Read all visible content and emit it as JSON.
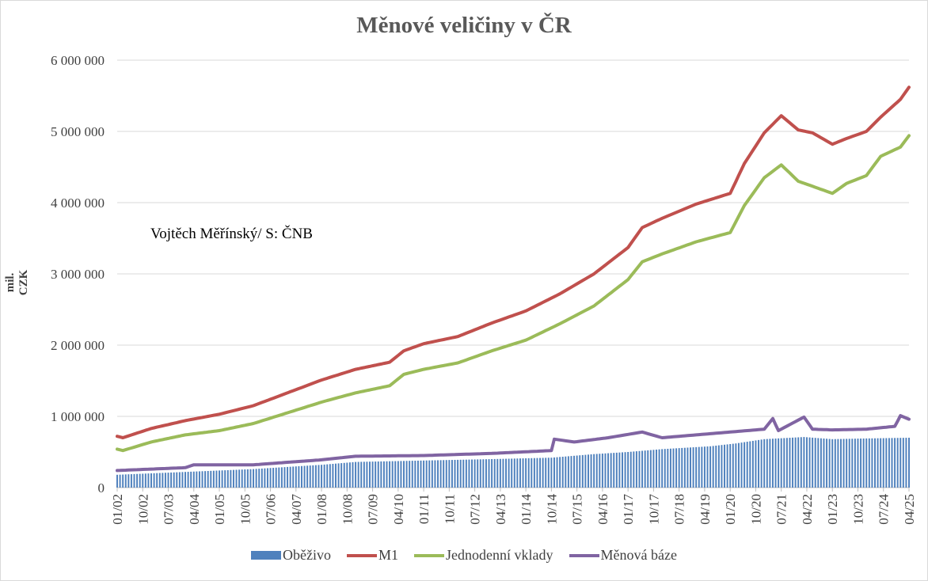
{
  "chart_data": {
    "type": "line",
    "title": "Měnové veličiny v ČR",
    "xlabel": "",
    "ylabel": "mil. CZK",
    "annotation": "Vojtěch Měřínský/ S: ČNB",
    "ylim": [
      0,
      6000000
    ],
    "ytick_labels": [
      "0",
      "1 000 000",
      "2 000 000",
      "3 000 000",
      "4 000 000",
      "5 000 000",
      "6 000 000"
    ],
    "x_tick_labels": [
      "01/02",
      "10/02",
      "07/03",
      "04/04",
      "01/05",
      "10/05",
      "07/06",
      "04/07",
      "01/08",
      "10/08",
      "07/09",
      "04/10",
      "01/11",
      "10/11",
      "07/12",
      "04/13",
      "01/14",
      "10/14",
      "07/15",
      "04/16",
      "01/17",
      "10/17",
      "07/18",
      "04/19",
      "01/20",
      "10/20",
      "07/21",
      "04/22",
      "01/23",
      "10/23",
      "07/24",
      "04/25"
    ],
    "x_range_months": [
      "2002-01",
      "2025-04"
    ],
    "grid": true,
    "legend_position": "bottom",
    "series": [
      {
        "name": "Oběživo",
        "type": "bar",
        "color": "#4f81bd",
        "points": [
          [
            "2002-01",
            180000
          ],
          [
            "2004-01",
            220000
          ],
          [
            "2006-01",
            260000
          ],
          [
            "2008-01",
            320000
          ],
          [
            "2009-01",
            360000
          ],
          [
            "2011-01",
            380000
          ],
          [
            "2013-01",
            400000
          ],
          [
            "2014-10",
            420000
          ],
          [
            "2016-01",
            470000
          ],
          [
            "2017-01",
            500000
          ],
          [
            "2018-01",
            540000
          ],
          [
            "2019-06",
            580000
          ],
          [
            "2020-03",
            620000
          ],
          [
            "2021-01",
            680000
          ],
          [
            "2022-03",
            710000
          ],
          [
            "2023-01",
            680000
          ],
          [
            "2024-01",
            690000
          ],
          [
            "2025-04",
            700000
          ]
        ]
      },
      {
        "name": "M1",
        "type": "line",
        "color": "#c0504d",
        "points": [
          [
            "2002-01",
            720000
          ],
          [
            "2002-03",
            700000
          ],
          [
            "2003-01",
            830000
          ],
          [
            "2004-01",
            940000
          ],
          [
            "2005-01",
            1030000
          ],
          [
            "2006-01",
            1150000
          ],
          [
            "2007-01",
            1330000
          ],
          [
            "2008-01",
            1510000
          ],
          [
            "2009-01",
            1660000
          ],
          [
            "2010-01",
            1760000
          ],
          [
            "2010-06",
            1920000
          ],
          [
            "2011-01",
            2020000
          ],
          [
            "2012-01",
            2120000
          ],
          [
            "2013-01",
            2310000
          ],
          [
            "2014-01",
            2480000
          ],
          [
            "2015-01",
            2720000
          ],
          [
            "2016-01",
            3000000
          ],
          [
            "2017-01",
            3370000
          ],
          [
            "2017-06",
            3650000
          ],
          [
            "2018-01",
            3780000
          ],
          [
            "2019-01",
            3980000
          ],
          [
            "2020-01",
            4130000
          ],
          [
            "2020-06",
            4550000
          ],
          [
            "2021-01",
            4980000
          ],
          [
            "2021-07",
            5220000
          ],
          [
            "2022-01",
            5020000
          ],
          [
            "2022-06",
            4980000
          ],
          [
            "2023-01",
            4820000
          ],
          [
            "2023-06",
            4900000
          ],
          [
            "2024-01",
            5000000
          ],
          [
            "2024-06",
            5200000
          ],
          [
            "2025-01",
            5450000
          ],
          [
            "2025-04",
            5620000
          ]
        ]
      },
      {
        "name": "Jednodenní vklady",
        "type": "line",
        "color": "#9bbb59",
        "points": [
          [
            "2002-01",
            540000
          ],
          [
            "2002-03",
            520000
          ],
          [
            "2003-01",
            640000
          ],
          [
            "2004-01",
            740000
          ],
          [
            "2005-01",
            800000
          ],
          [
            "2006-01",
            900000
          ],
          [
            "2007-01",
            1050000
          ],
          [
            "2008-01",
            1200000
          ],
          [
            "2009-01",
            1330000
          ],
          [
            "2010-01",
            1430000
          ],
          [
            "2010-06",
            1590000
          ],
          [
            "2011-01",
            1660000
          ],
          [
            "2012-01",
            1750000
          ],
          [
            "2013-01",
            1920000
          ],
          [
            "2014-01",
            2070000
          ],
          [
            "2015-01",
            2300000
          ],
          [
            "2016-01",
            2550000
          ],
          [
            "2017-01",
            2920000
          ],
          [
            "2017-06",
            3170000
          ],
          [
            "2018-01",
            3280000
          ],
          [
            "2019-01",
            3450000
          ],
          [
            "2020-01",
            3580000
          ],
          [
            "2020-06",
            3960000
          ],
          [
            "2021-01",
            4350000
          ],
          [
            "2021-07",
            4530000
          ],
          [
            "2022-01",
            4300000
          ],
          [
            "2022-06",
            4230000
          ],
          [
            "2023-01",
            4130000
          ],
          [
            "2023-06",
            4270000
          ],
          [
            "2024-01",
            4380000
          ],
          [
            "2024-06",
            4650000
          ],
          [
            "2025-01",
            4780000
          ],
          [
            "2025-04",
            4940000
          ]
        ]
      },
      {
        "name": "Měnová báze",
        "type": "line",
        "color": "#8064a2",
        "points": [
          [
            "2002-01",
            240000
          ],
          [
            "2004-01",
            280000
          ],
          [
            "2004-04",
            320000
          ],
          [
            "2006-01",
            320000
          ],
          [
            "2008-01",
            390000
          ],
          [
            "2009-01",
            440000
          ],
          [
            "2011-01",
            450000
          ],
          [
            "2013-01",
            480000
          ],
          [
            "2014-10",
            520000
          ],
          [
            "2014-11",
            680000
          ],
          [
            "2015-06",
            640000
          ],
          [
            "2016-06",
            700000
          ],
          [
            "2017-06",
            780000
          ],
          [
            "2018-01",
            700000
          ],
          [
            "2019-01",
            740000
          ],
          [
            "2020-01",
            780000
          ],
          [
            "2021-01",
            820000
          ],
          [
            "2021-04",
            970000
          ],
          [
            "2021-06",
            800000
          ],
          [
            "2022-03",
            990000
          ],
          [
            "2022-06",
            820000
          ],
          [
            "2023-01",
            810000
          ],
          [
            "2024-01",
            820000
          ],
          [
            "2024-11",
            860000
          ],
          [
            "2025-01",
            1010000
          ],
          [
            "2025-04",
            960000
          ]
        ]
      }
    ]
  }
}
